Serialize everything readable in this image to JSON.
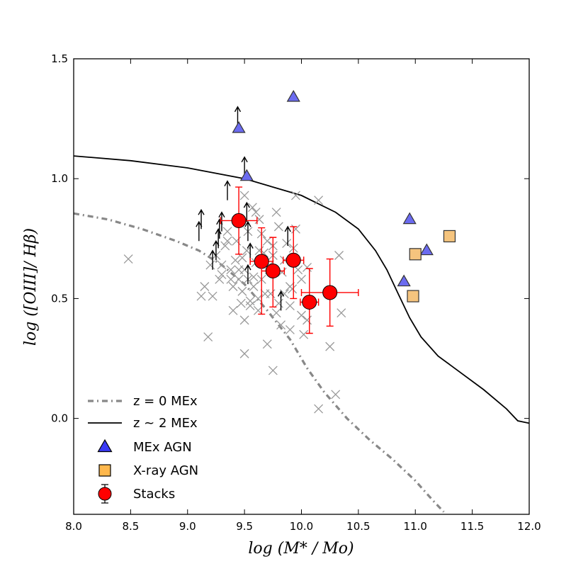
{
  "chart_data": {
    "type": "scatter",
    "title": "",
    "xlabel": "log (M* / Mo)",
    "ylabel": "log ([OIII]/ Hβ)",
    "xlim": [
      8.0,
      12.0
    ],
    "ylim": [
      -0.4,
      1.5
    ],
    "xticks": [
      8.0,
      8.5,
      9.0,
      9.5,
      10.0,
      10.5,
      11.0,
      11.5,
      12.0
    ],
    "xtick_labels": [
      "8.0",
      "8.5",
      "9.0",
      "9.5",
      "10.0",
      "10.5",
      "11.0",
      "11.5",
      "12.0"
    ],
    "yticks": [
      0.0,
      0.5,
      1.0,
      1.5
    ],
    "ytick_labels": [
      "0.0",
      "0.5",
      "1.0",
      "1.5"
    ],
    "colors": {
      "stacks": "#ff0000",
      "mex_agn_fill": "#6b6bf0",
      "xray_agn_fill": "#f5c47e",
      "galaxies": "#999999",
      "z0_line": "#888888",
      "z2_line": "#000000"
    },
    "legend": {
      "position": "lower-left",
      "entries": [
        {
          "label": "z = 0 MEx",
          "marker": "dashdot-line"
        },
        {
          "label": "z ~ 2 MEx",
          "marker": "solid-line"
        },
        {
          "label": "MEx AGN",
          "marker": "triangle"
        },
        {
          "label": "X-ray AGN",
          "marker": "square"
        },
        {
          "label": "Stacks",
          "marker": "errorbar-circle"
        }
      ]
    },
    "series": [
      {
        "name": "z = 0 MEx",
        "kind": "line",
        "style": "dashdot",
        "x": [
          8.0,
          8.3,
          8.6,
          8.9,
          9.1,
          9.3,
          9.5,
          9.7,
          9.9,
          10.05,
          10.2,
          10.4,
          10.6,
          10.8,
          11.0,
          11.15,
          11.25
        ],
        "y": [
          0.855,
          0.83,
          0.79,
          0.74,
          0.7,
          0.64,
          0.56,
          0.45,
          0.33,
          0.21,
          0.11,
          0.0,
          -0.09,
          -0.17,
          -0.26,
          -0.34,
          -0.39
        ]
      },
      {
        "name": "z ~ 2 MEx",
        "kind": "line",
        "style": "solid",
        "x": [
          8.0,
          8.5,
          9.0,
          9.5,
          10.0,
          10.3,
          10.5,
          10.65,
          10.75,
          10.85,
          10.95,
          11.05,
          11.2,
          11.4,
          11.6,
          11.8,
          11.9,
          12.0
        ],
        "y": [
          1.095,
          1.075,
          1.045,
          1.0,
          0.93,
          0.86,
          0.79,
          0.7,
          0.62,
          0.52,
          0.42,
          0.34,
          0.26,
          0.19,
          0.12,
          0.04,
          -0.01,
          -0.02
        ]
      },
      {
        "name": "Galaxies",
        "kind": "scatter",
        "marker": "x",
        "x": [
          8.48,
          9.12,
          9.18,
          9.22,
          9.28,
          9.3,
          9.33,
          9.35,
          9.38,
          9.4,
          9.42,
          9.43,
          9.45,
          9.47,
          9.48,
          9.5,
          9.5,
          9.52,
          9.53,
          9.55,
          9.57,
          9.58,
          9.6,
          9.62,
          9.63,
          9.65,
          9.67,
          9.7,
          9.72,
          9.75,
          9.78,
          9.8,
          9.82,
          9.85,
          9.87,
          9.9,
          9.92,
          9.95,
          9.97,
          10.0,
          10.02,
          10.05,
          9.15,
          9.25,
          9.35,
          9.45,
          9.55,
          9.65,
          9.75,
          9.85,
          9.95,
          10.05,
          9.5,
          9.6,
          9.7,
          9.8,
          9.9,
          10.0,
          9.4,
          9.3,
          9.2,
          9.5,
          9.75,
          10.15,
          10.25,
          10.3,
          10.33,
          10.35,
          10.15,
          9.53,
          9.63,
          9.73,
          9.83,
          9.93,
          9.9,
          9.78,
          9.68,
          9.58,
          9.48,
          9.38,
          9.62,
          9.72
        ],
        "y": [
          0.665,
          0.51,
          0.34,
          0.51,
          0.58,
          0.64,
          0.72,
          0.78,
          0.62,
          0.55,
          0.66,
          0.74,
          0.58,
          0.48,
          0.53,
          0.27,
          0.62,
          0.7,
          0.58,
          0.47,
          0.88,
          0.55,
          0.65,
          0.45,
          0.83,
          0.77,
          0.69,
          0.31,
          0.62,
          0.72,
          0.86,
          0.48,
          0.39,
          0.66,
          0.73,
          0.47,
          0.54,
          0.93,
          0.62,
          0.58,
          0.35,
          0.63,
          0.55,
          0.68,
          0.74,
          0.62,
          0.49,
          0.58,
          0.68,
          0.52,
          0.79,
          0.41,
          0.93,
          0.86,
          0.74,
          0.8,
          0.55,
          0.43,
          0.45,
          0.6,
          0.64,
          0.41,
          0.2,
          0.91,
          0.3,
          0.1,
          0.68,
          0.44,
          0.04,
          0.78,
          0.7,
          0.52,
          0.61,
          0.71,
          0.37,
          0.44,
          0.52,
          0.59,
          0.67,
          0.58,
          0.5,
          0.64
        ]
      },
      {
        "name": "Lower limits",
        "kind": "upward-arrows",
        "x": [
          9.1,
          9.12,
          9.22,
          9.25,
          9.27,
          9.28,
          9.3,
          9.35,
          9.44,
          9.5,
          9.52,
          9.53,
          9.53,
          9.55,
          9.82,
          9.88
        ],
        "y": [
          0.74,
          0.79,
          0.62,
          0.66,
          0.71,
          0.75,
          0.78,
          0.91,
          1.22,
          1.01,
          0.82,
          0.74,
          0.56,
          0.65,
          0.45,
          0.72
        ]
      },
      {
        "name": "MEx AGN",
        "kind": "scatter",
        "marker": "triangle",
        "x": [
          9.45,
          9.93,
          9.52,
          10.95,
          11.1,
          10.9
        ],
        "y": [
          1.21,
          1.34,
          1.01,
          0.83,
          0.7,
          0.57
        ]
      },
      {
        "name": "X-ray AGN",
        "kind": "scatter",
        "marker": "square",
        "x": [
          11.3,
          11.0,
          10.98
        ],
        "y": [
          0.76,
          0.685,
          0.51
        ]
      },
      {
        "name": "Stacks",
        "kind": "errorbar",
        "marker": "circle",
        "x": [
          9.45,
          9.65,
          9.75,
          9.93,
          10.07,
          10.25
        ],
        "y": [
          0.825,
          0.655,
          0.615,
          0.66,
          0.485,
          0.525
        ],
        "xerr": [
          0.16,
          0.1,
          0.1,
          0.09,
          0.08,
          0.25
        ],
        "yerr_low": [
          0.14,
          0.22,
          0.15,
          0.16,
          0.13,
          0.14
        ],
        "yerr_high": [
          0.14,
          0.14,
          0.14,
          0.14,
          0.14,
          0.14
        ]
      }
    ]
  }
}
